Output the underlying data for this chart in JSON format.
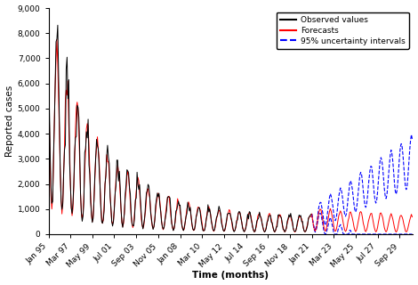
{
  "title": "",
  "ylabel": "Reported cases",
  "xlabel": "Time (months)",
  "ylim": [
    0,
    9000
  ],
  "yticks": [
    0,
    1000,
    2000,
    3000,
    4000,
    5000,
    6000,
    7000,
    8000,
    9000
  ],
  "ytick_labels": [
    "0",
    "1,000",
    "2,000",
    "3,000",
    "4,000",
    "5,000",
    "6,000",
    "7,000",
    "8,000",
    "9,000"
  ],
  "observed_color": "#000000",
  "forecast_color": "#ff0000",
  "uncertainty_color": "#0000ff",
  "legend_entries": [
    "Observed values",
    "Forecasts",
    "95% uncertainty intervals"
  ],
  "xtick_labels": [
    "Jan 95",
    "Mar 97",
    "May 99",
    "Jul 01",
    "Sep 03",
    "Nov 05",
    "Jan 08",
    "Mar 10",
    "May 12",
    "Jul 14",
    "Sep 16",
    "Nov 18",
    "Jan 21",
    "Mar 23",
    "May 25",
    "Jul 27",
    "Sep 29"
  ],
  "background_color": "#ffffff",
  "figwidth": 4.7,
  "figheight": 3.2
}
